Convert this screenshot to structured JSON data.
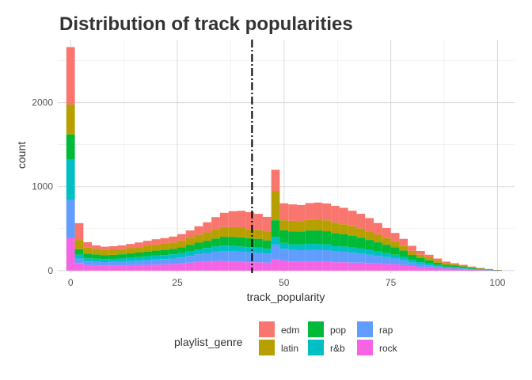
{
  "chart_data": {
    "type": "bar",
    "title": "Distribution of track popularities",
    "xlabel": "track_popularity",
    "ylabel": "count",
    "xlim": [
      -3,
      104
    ],
    "ylim": [
      -30,
      2750
    ],
    "xticks": [
      0,
      25,
      50,
      75,
      100
    ],
    "yticks": [
      0,
      1000,
      2000
    ],
    "grid": true,
    "stacked": true,
    "bin_width": 2,
    "reference_line": {
      "x": 42.5,
      "style": "dashdot"
    },
    "legend": {
      "title": "playlist_genre",
      "position": "bottom"
    },
    "bins": [
      0,
      2,
      4,
      6,
      8,
      10,
      12,
      14,
      16,
      18,
      20,
      22,
      24,
      26,
      28,
      30,
      32,
      34,
      36,
      38,
      40,
      42,
      44,
      46,
      48,
      50,
      52,
      54,
      56,
      58,
      60,
      62,
      64,
      66,
      68,
      70,
      72,
      74,
      76,
      78,
      80,
      82,
      84,
      86,
      88,
      90,
      92,
      94,
      96,
      98,
      100
    ],
    "series": [
      {
        "name": "rock",
        "color": "#F564E3",
        "values": [
          390,
          90,
          70,
          65,
          62,
          62,
          62,
          65,
          68,
          70,
          72,
          75,
          80,
          85,
          95,
          105,
          110,
          115,
          115,
          110,
          105,
          100,
          100,
          95,
          140,
          120,
          110,
          108,
          108,
          108,
          105,
          100,
          100,
          95,
          95,
          90,
          85,
          80,
          75,
          68,
          55,
          45,
          40,
          30,
          25,
          22,
          18,
          12,
          8,
          5,
          2
        ]
      },
      {
        "name": "rap",
        "color": "#619CFF",
        "values": [
          450,
          55,
          40,
          40,
          40,
          42,
          45,
          48,
          50,
          55,
          60,
          62,
          65,
          72,
          80,
          90,
          100,
          110,
          118,
          120,
          120,
          118,
          115,
          110,
          170,
          140,
          135,
          135,
          140,
          140,
          138,
          130,
          125,
          118,
          110,
          100,
          90,
          80,
          70,
          55,
          40,
          30,
          22,
          18,
          12,
          10,
          8,
          5,
          3,
          2,
          1
        ]
      },
      {
        "name": "r&b",
        "color": "#00BFC4",
        "values": [
          480,
          45,
          38,
          36,
          35,
          36,
          38,
          40,
          42,
          44,
          46,
          48,
          50,
          52,
          55,
          58,
          60,
          62,
          65,
          62,
          62,
          60,
          58,
          55,
          90,
          70,
          68,
          68,
          70,
          70,
          68,
          65,
          62,
          60,
          58,
          55,
          52,
          48,
          44,
          40,
          32,
          26,
          22,
          18,
          12,
          10,
          8,
          5,
          3,
          2,
          1
        ]
      },
      {
        "name": "pop",
        "color": "#00BA38",
        "values": [
          300,
          65,
          55,
          52,
          48,
          48,
          50,
          52,
          55,
          58,
          60,
          62,
          65,
          70,
          75,
          80,
          85,
          95,
          105,
          110,
          110,
          108,
          105,
          100,
          200,
          150,
          155,
          155,
          160,
          160,
          158,
          150,
          145,
          140,
          130,
          120,
          110,
          100,
          90,
          75,
          60,
          48,
          38,
          28,
          22,
          18,
          15,
          10,
          8,
          5,
          2
        ]
      },
      {
        "name": "latin",
        "color": "#B79F00",
        "values": [
          360,
          110,
          75,
          65,
          60,
          60,
          60,
          62,
          65,
          68,
          70,
          72,
          75,
          80,
          88,
          95,
          100,
          110,
          115,
          115,
          115,
          110,
          108,
          105,
          350,
          120,
          125,
          125,
          130,
          132,
          130,
          125,
          120,
          115,
          108,
          100,
          90,
          80,
          70,
          60,
          48,
          40,
          32,
          25,
          18,
          14,
          10,
          8,
          5,
          3,
          1
        ]
      },
      {
        "name": "edm",
        "color": "#F8766D",
        "values": [
          680,
          200,
          60,
          42,
          40,
          42,
          45,
          50,
          55,
          60,
          65,
          68,
          70,
          75,
          85,
          100,
          120,
          145,
          170,
          190,
          200,
          200,
          190,
          175,
          250,
          200,
          195,
          190,
          195,
          200,
          200,
          200,
          195,
          185,
          175,
          160,
          140,
          120,
          100,
          80,
          60,
          45,
          35,
          25,
          18,
          14,
          10,
          8,
          5,
          3,
          1
        ]
      }
    ],
    "legend_order": [
      "edm",
      "latin",
      "pop",
      "r&b",
      "rap",
      "rock"
    ]
  }
}
